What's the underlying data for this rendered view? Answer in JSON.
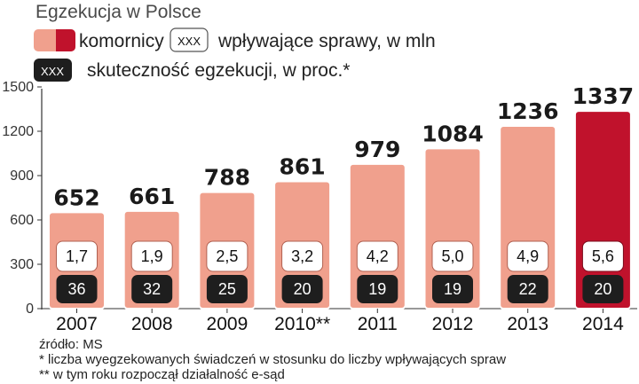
{
  "chart_data": {
    "type": "bar",
    "title": "Egzekucja w Polsce",
    "legend": {
      "bar_label": "komornicy",
      "box_sample": "XXX",
      "box_label": "wpływające sprawy, w mln",
      "dark_sample": "XXX",
      "dark_label": "skuteczność egzekucji, w proc.*"
    },
    "categories": [
      "2007",
      "2008",
      "2009",
      "2010**",
      "2011",
      "2012",
      "2013",
      "2014"
    ],
    "series": [
      {
        "name": "komornicy",
        "values": [
          652,
          661,
          788,
          861,
          979,
          1084,
          1236,
          1337
        ]
      },
      {
        "name": "wpływające sprawy, w mln",
        "values": [
          "1,7",
          "1,9",
          "2,5",
          "3,2",
          "4,2",
          "5,0",
          "4,9",
          "5,6"
        ]
      },
      {
        "name": "skuteczność egzekucji, w proc.*",
        "values": [
          36,
          32,
          25,
          20,
          19,
          19,
          22,
          20
        ]
      }
    ],
    "highlight_category": "2014",
    "y_ticks": [
      0,
      300,
      600,
      900,
      1200,
      1500
    ],
    "ylim": [
      0,
      1500
    ],
    "grid": false,
    "colors": {
      "bar": "#f0a08d",
      "bar_highlight": "#c0122c",
      "bar_edge": "#ffffff",
      "dark_box": "#1e1e1e"
    }
  },
  "footnotes": {
    "source": "źródło: MS",
    "note1": "* liczba wyegzekowanych świadczeń w stosunku do liczby wpływających spraw",
    "note2": "** w tym roku rozpoczął działalność e-sąd"
  }
}
